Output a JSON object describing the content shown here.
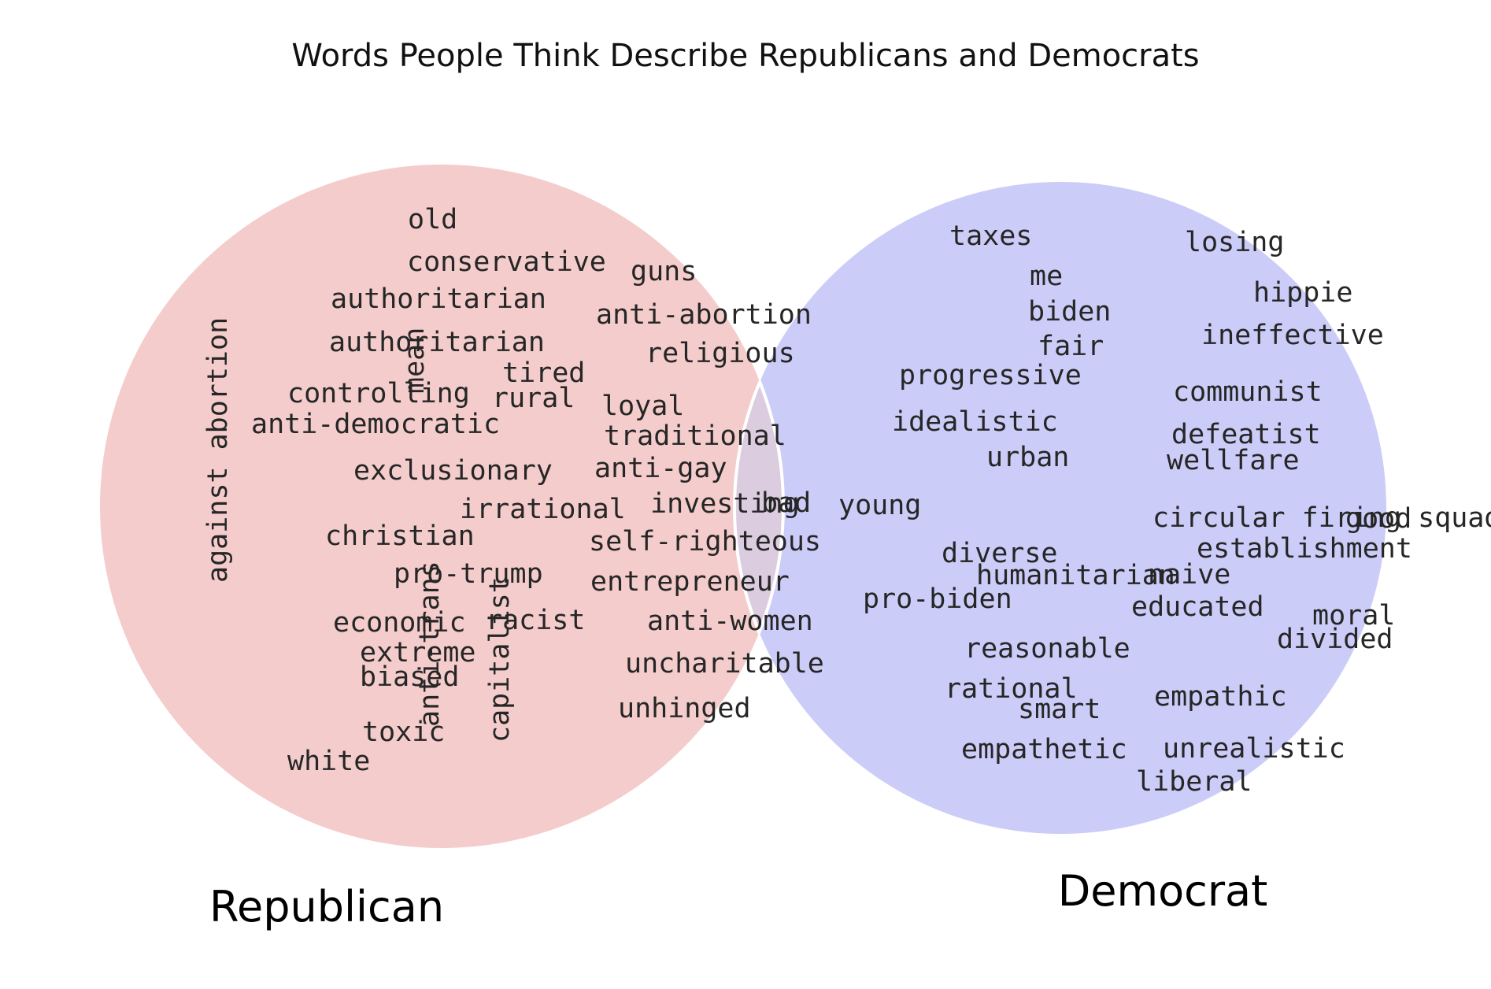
{
  "title": "Words People Think Describe Republicans and Democrats",
  "sets": {
    "republican": {
      "label": "Republican",
      "color": "#f4cccc"
    },
    "democrat": {
      "label": "Democrat",
      "color": "#ccccf9"
    },
    "overlap_color": "#dcccdf"
  },
  "words": {
    "republican": [
      "old",
      "conservative",
      "guns",
      "authoritarian",
      "anti-abortion",
      "authoritarian",
      "religious",
      "tired",
      "mean",
      "controlling",
      "rural",
      "loyal",
      "anti-democratic",
      "traditional",
      "exclusionary",
      "anti-gay",
      "against abortion",
      "investing",
      "irrational",
      "christian",
      "self-righteous",
      "pro-trump",
      "entrepreneur",
      "economic",
      "racist",
      "anti-women",
      "extreme",
      "biased",
      "anti-trans",
      "capitalist",
      "uncharitable",
      "unhinged",
      "toxic",
      "white"
    ],
    "both": [
      "bad"
    ],
    "democrat": [
      "taxes",
      "losing",
      "me",
      "hippie",
      "biden",
      "fair",
      "ineffective",
      "progressive",
      "communist",
      "idealistic",
      "defeatist",
      "urban",
      "wellfare",
      "young",
      "circular firing squad",
      "good",
      "diverse",
      "establishment",
      "humanitarian",
      "naive",
      "pro-biden",
      "educated",
      "moral",
      "divided",
      "reasonable",
      "rational",
      "smart",
      "empathic",
      "empathetic",
      "unrealistic",
      "liberal"
    ]
  }
}
